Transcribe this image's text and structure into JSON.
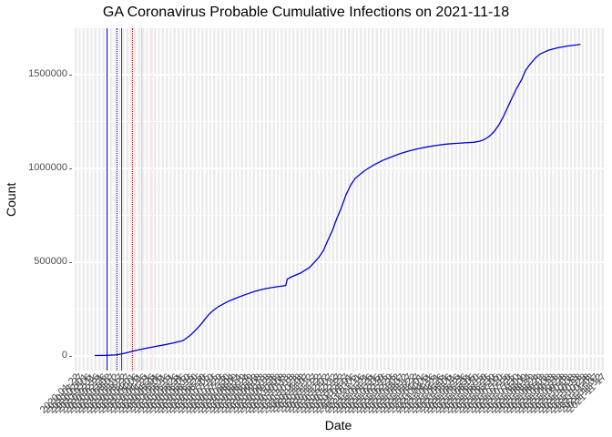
{
  "title": "GA Coronavirus Probable Cumulative Infections on 2021-11-18",
  "axes": {
    "x_label": "Date",
    "y_label": "Count",
    "y_ticks": [
      "0",
      "500000",
      "1000000",
      "1500000"
    ],
    "x_tick_labels": [
      "2020-01-22",
      "2020-01-27",
      "2020-02-01",
      "2020-02-06",
      "2020-02-11",
      "2020-02-16",
      "2020-02-21",
      "2020-02-26",
      "2020-03-02",
      "2020-03-07",
      "2020-03-12",
      "2020-03-17",
      "2020-03-22",
      "2020-03-27",
      "2020-04-01",
      "2020-04-06",
      "2020-04-11",
      "2020-04-16",
      "2020-04-21",
      "2020-04-26",
      "2020-05-01",
      "2020-05-06",
      "2020-05-11",
      "2020-05-16",
      "2020-05-21",
      "2020-05-26",
      "2020-05-31",
      "2020-06-05",
      "2020-06-10",
      "2020-06-15",
      "2020-06-20",
      "2020-06-25",
      "2020-06-30",
      "2020-07-05",
      "2020-07-10",
      "2020-07-15",
      "2020-07-20",
      "2020-07-25",
      "2020-07-30",
      "2020-08-04",
      "2020-08-09",
      "2020-08-14",
      "2020-08-19",
      "2020-08-24",
      "2020-08-29",
      "2020-09-03",
      "2020-09-08",
      "2020-09-13",
      "2020-09-18",
      "2020-09-23",
      "2020-09-28",
      "2020-10-03",
      "2020-10-08",
      "2020-10-13",
      "2020-10-18",
      "2020-10-23",
      "2020-10-28",
      "2020-11-02",
      "2020-11-07",
      "2020-11-12",
      "2020-11-17",
      "2020-11-22",
      "2020-11-27",
      "2020-12-02",
      "2020-12-07",
      "2020-12-12",
      "2020-12-17",
      "2020-12-22",
      "2020-12-27",
      "2021-01-01",
      "2021-01-06",
      "2021-01-11",
      "2021-01-16",
      "2021-01-21",
      "2021-01-26",
      "2021-01-31",
      "2021-02-05",
      "2021-02-10",
      "2021-02-15",
      "2021-02-20",
      "2021-02-25",
      "2021-03-02",
      "2021-03-07",
      "2021-03-12",
      "2021-03-17",
      "2021-03-22",
      "2021-03-27",
      "2021-04-01",
      "2021-04-06",
      "2021-04-11",
      "2021-04-16",
      "2021-04-21",
      "2021-04-26",
      "2021-05-01",
      "2021-05-06",
      "2021-05-11",
      "2021-05-16",
      "2021-05-21",
      "2021-05-26",
      "2021-05-31",
      "2021-06-05",
      "2021-06-10",
      "2021-06-15",
      "2021-06-20",
      "2021-06-25",
      "2021-06-30",
      "2021-07-05",
      "2021-07-10",
      "2021-07-15",
      "2021-07-20",
      "2021-07-25",
      "2021-07-30",
      "2021-08-04",
      "2021-08-09",
      "2021-08-14",
      "2021-08-19",
      "2021-08-24",
      "2021-08-29",
      "2021-09-03",
      "2021-09-08",
      "2021-09-13",
      "2021-09-18",
      "2021-09-23",
      "2021-09-28",
      "2021-10-03",
      "2021-10-08",
      "2021-10-13",
      "2021-10-18",
      "2021-10-23",
      "2021-10-28",
      "2021-11-02",
      "2021-11-07",
      "2021-11-12",
      "2021-11-17"
    ]
  },
  "colors": {
    "line": "#0000CD",
    "vline_blue": "#0000E6",
    "vline_red": "#E60000",
    "vline_pink": "#FFB6C1",
    "vline_pink_light": "#FFD6DC",
    "panel_bg": "#EBEBEB",
    "grid": "#FFFFFF",
    "tick_text": "#4D4D4D",
    "title_text": "#000000"
  },
  "chart_data": {
    "type": "line",
    "title": "GA Coronavirus Probable Cumulative Infections on 2021-11-18",
    "xlabel": "Date",
    "ylabel": "Count",
    "x_range": [
      "2020-01-22",
      "2021-11-18"
    ],
    "ylim": [
      -69000,
      1742000
    ],
    "y_major_values": [
      0,
      500000,
      1000000,
      1500000
    ],
    "y_minor_values": [
      250000,
      750000,
      1250000
    ],
    "grid": "on",
    "legend": "none",
    "notes": "Single blue cumulative curve; waves summer 2020, winter 2020-21 (to ~1.13M), delta wave fall 2021 (to ~1.66M); small vertical data-revision step (~+35k) around Oct 2020; six vertical reference lines near Feb-Apr 2020. Points are [fraction of panel width, count].",
    "series": [
      {
        "name": "probable cumulative infections",
        "color": "#0000CD",
        "points": [
          [
            0.041,
            0
          ],
          [
            0.063,
            1000
          ],
          [
            0.083,
            4000
          ],
          [
            0.091,
            8000
          ],
          [
            0.103,
            16000
          ],
          [
            0.12,
            28000
          ],
          [
            0.138,
            39000
          ],
          [
            0.155,
            48000
          ],
          [
            0.172,
            57000
          ],
          [
            0.189,
            67000
          ],
          [
            0.206,
            78000
          ],
          [
            0.214,
            92000
          ],
          [
            0.223,
            112000
          ],
          [
            0.232,
            138000
          ],
          [
            0.241,
            165000
          ],
          [
            0.249,
            195000
          ],
          [
            0.257,
            222000
          ],
          [
            0.266,
            244000
          ],
          [
            0.275,
            262000
          ],
          [
            0.292,
            288000
          ],
          [
            0.309,
            308000
          ],
          [
            0.326,
            326000
          ],
          [
            0.343,
            342000
          ],
          [
            0.36,
            355000
          ],
          [
            0.378,
            364000
          ],
          [
            0.395,
            371000
          ],
          [
            0.401,
            374000
          ],
          [
            0.404,
            408000
          ],
          [
            0.412,
            420000
          ],
          [
            0.429,
            440000
          ],
          [
            0.446,
            470000
          ],
          [
            0.463,
            522000
          ],
          [
            0.472,
            560000
          ],
          [
            0.48,
            612000
          ],
          [
            0.489,
            668000
          ],
          [
            0.497,
            730000
          ],
          [
            0.506,
            790000
          ],
          [
            0.515,
            860000
          ],
          [
            0.524,
            912000
          ],
          [
            0.532,
            945000
          ],
          [
            0.549,
            985000
          ],
          [
            0.566,
            1015000
          ],
          [
            0.583,
            1040000
          ],
          [
            0.601,
            1060000
          ],
          [
            0.617,
            1077000
          ],
          [
            0.635,
            1092000
          ],
          [
            0.652,
            1104000
          ],
          [
            0.669,
            1113000
          ],
          [
            0.686,
            1121000
          ],
          [
            0.703,
            1127000
          ],
          [
            0.721,
            1131000
          ],
          [
            0.738,
            1134000
          ],
          [
            0.755,
            1137000
          ],
          [
            0.767,
            1143000
          ],
          [
            0.775,
            1152000
          ],
          [
            0.784,
            1168000
          ],
          [
            0.793,
            1192000
          ],
          [
            0.802,
            1228000
          ],
          [
            0.811,
            1275000
          ],
          [
            0.819,
            1324000
          ],
          [
            0.827,
            1372000
          ],
          [
            0.836,
            1425000
          ],
          [
            0.845,
            1470000
          ],
          [
            0.853,
            1522000
          ],
          [
            0.862,
            1556000
          ],
          [
            0.871,
            1586000
          ],
          [
            0.879,
            1606000
          ],
          [
            0.888,
            1618000
          ],
          [
            0.896,
            1628000
          ],
          [
            0.913,
            1641000
          ],
          [
            0.931,
            1650000
          ],
          [
            0.948,
            1656000
          ],
          [
            0.956,
            1659000
          ]
        ]
      }
    ],
    "vlines": [
      {
        "x_frac": 0.0635,
        "x_date_est": "2020-02-07",
        "style": "solid",
        "color": "#0000E6"
      },
      {
        "x_frac": 0.0823,
        "x_date_est": "2020-02-21",
        "style": "dotted",
        "color": "#0000E6"
      },
      {
        "x_frac": 0.0909,
        "x_date_est": "2020-02-27",
        "style": "solid",
        "color": "#E60000"
      },
      {
        "x_frac": 0.1115,
        "x_date_est": "2020-03-13",
        "style": "dotted",
        "color": "#E60000"
      },
      {
        "x_frac": 0.1286,
        "x_date_est": "2020-03-26",
        "style": "solid",
        "color": "#FFB6C1"
      },
      {
        "x_frac": 0.1492,
        "x_date_est": "2020-04-10",
        "style": "dotted",
        "color": "#FFD6DC"
      }
    ]
  }
}
